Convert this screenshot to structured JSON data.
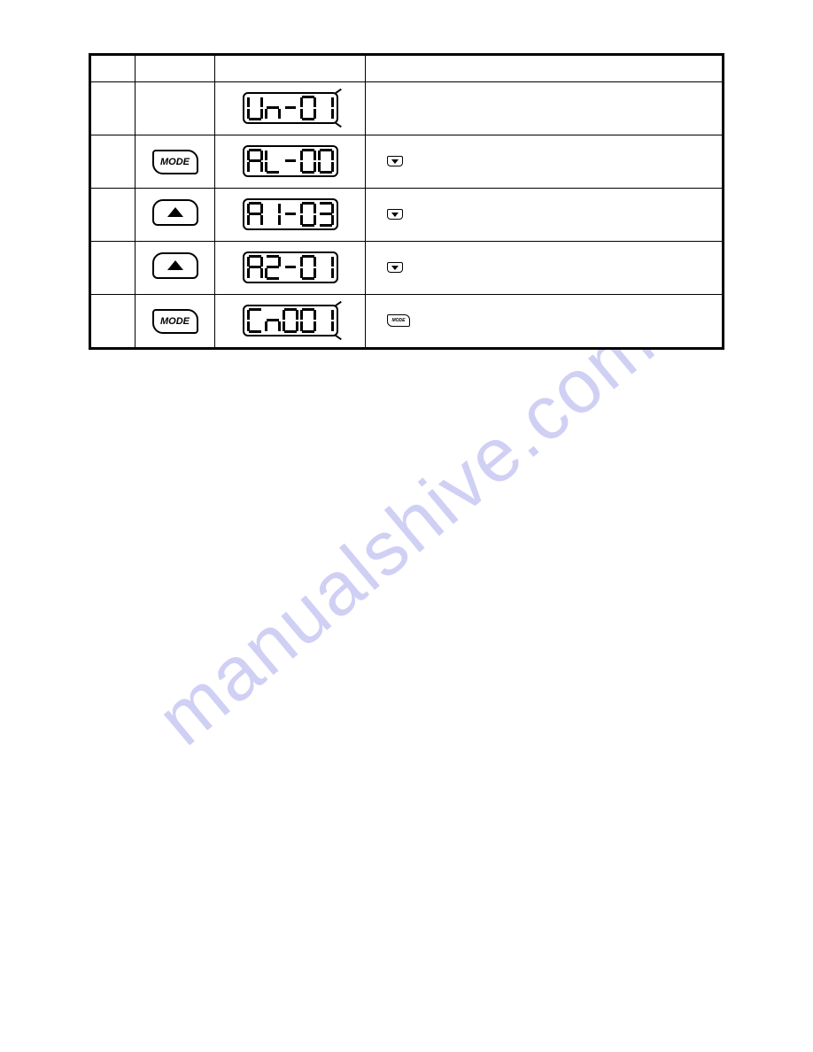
{
  "watermark": {
    "text": "manualshive.com",
    "color": "#b8b8f0"
  },
  "buttons": {
    "mode_label": "MODE",
    "mode_sm_label": "MODE"
  },
  "table": {
    "rows": [
      {
        "key": null,
        "lcd": "Un-01",
        "lcd_ticks": true,
        "desc_icon": null
      },
      {
        "key": "mode",
        "lcd": "AL-00",
        "lcd_ticks": false,
        "desc_icon": null
      },
      {
        "key": "up",
        "lcd": "A1-03",
        "lcd_ticks": false,
        "desc_icon": "down"
      },
      {
        "key": "up",
        "lcd": "A2-01",
        "lcd_ticks": false,
        "desc_icon": "down"
      },
      {
        "key": "mode",
        "lcd": "Cn001",
        "lcd_ticks": true,
        "desc_icon": "mode"
      }
    ]
  },
  "seven_segment_map": {
    "0": "abcdef",
    "1": "bc",
    "2": "abged",
    "3": "abgcd",
    "U": "bcdef",
    "n": "ceg_low",
    "A": "abcefg",
    "L": "def",
    "C": "adef",
    "-": "dash"
  }
}
